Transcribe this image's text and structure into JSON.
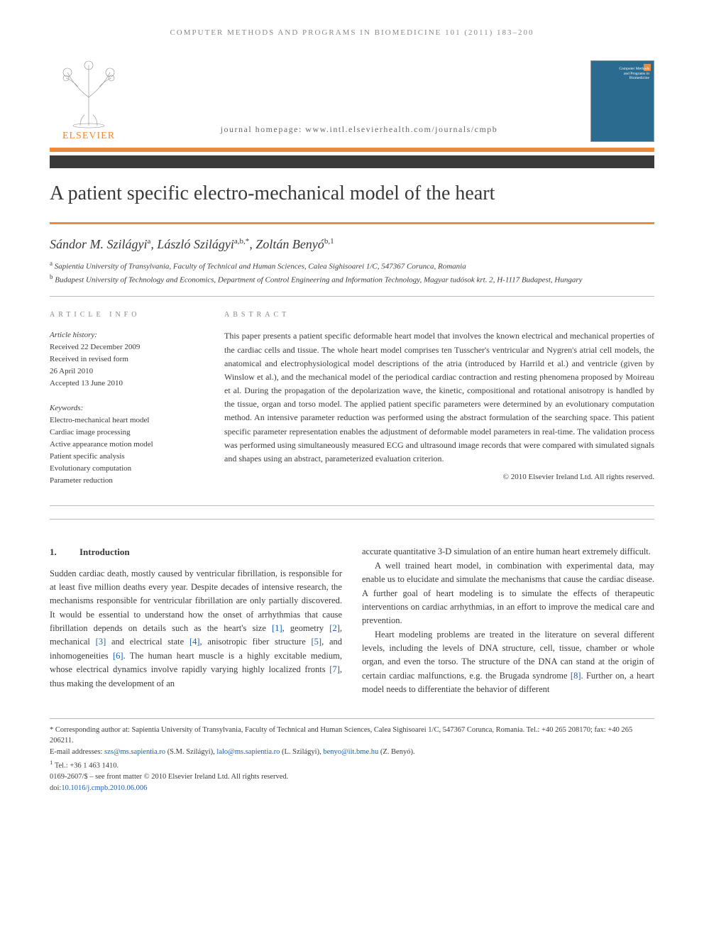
{
  "running_head": "COMPUTER METHODS AND PROGRAMS IN BIOMEDICINE 101 (2011) 183–200",
  "publisher": {
    "name": "ELSEVIER",
    "logo_color": "#ea8a3a"
  },
  "journal_homepage": "journal homepage: www.intl.elsevierhealth.com/journals/cmpb",
  "journal_cover": {
    "title": "Computer Methods and Programs in Biomedicine",
    "bg_color": "#2a6b8f"
  },
  "bars": {
    "orange": "#ea8a3a",
    "dark": "#3a3a3a"
  },
  "title": "A patient specific electro-mechanical model of the heart",
  "authors": [
    {
      "name": "Sándor M. Szilágyi",
      "affil": "a"
    },
    {
      "name": "László Szilágyi",
      "affil": "a,b,*"
    },
    {
      "name": "Zoltán Benyó",
      "affil": "b,1"
    }
  ],
  "affiliations": [
    {
      "sup": "a",
      "text": "Sapientia University of Transylvania, Faculty of Technical and Human Sciences, Calea Sighisoarei 1/C, 547367 Corunca, Romania"
    },
    {
      "sup": "b",
      "text": "Budapest University of Technology and Economics, Department of Control Engineering and Information Technology, Magyar tudósok krt. 2, H-1117 Budapest, Hungary"
    }
  ],
  "article_info": {
    "label": "ARTICLE INFO",
    "history_label": "Article history:",
    "received": "Received 22 December 2009",
    "revised_label": "Received in revised form",
    "revised_date": "26 April 2010",
    "accepted": "Accepted 13 June 2010",
    "keywords_label": "Keywords:",
    "keywords": [
      "Electro-mechanical heart model",
      "Cardiac image processing",
      "Active appearance motion model",
      "Patient specific analysis",
      "Evolutionary computation",
      "Parameter reduction"
    ]
  },
  "abstract": {
    "label": "ABSTRACT",
    "text": "This paper presents a patient specific deformable heart model that involves the known electrical and mechanical properties of the cardiac cells and tissue. The whole heart model comprises ten Tusscher's ventricular and Nygren's atrial cell models, the anatomical and electrophysiological model descriptions of the atria (introduced by Harrild et al.) and ventricle (given by Winslow et al.), and the mechanical model of the periodical cardiac contraction and resting phenomena proposed by Moireau et al. During the propagation of the depolarization wave, the kinetic, compositional and rotational anisotropy is handled by the tissue, organ and torso model. The applied patient specific parameters were determined by an evolutionary computation method. An intensive parameter reduction was performed using the abstract formulation of the searching space. This patient specific parameter representation enables the adjustment of deformable model parameters in real-time. The validation process was performed using simultaneously measured ECG and ultrasound image records that were compared with simulated signals and shapes using an abstract, parameterized evaluation criterion.",
    "copyright": "© 2010 Elsevier Ireland Ltd. All rights reserved."
  },
  "body": {
    "section_number": "1.",
    "section_title": "Introduction",
    "left_paragraphs": [
      "Sudden cardiac death, mostly caused by ventricular fibrillation, is responsible for at least five million deaths every year. Despite decades of intensive research, the mechanisms responsible for ventricular fibrillation are only partially discovered. It would be essential to understand how the onset of arrhythmias that cause fibrillation depends on details such as the heart's size [1], geometry [2], mechanical [3] and electrical state [4], anisotropic fiber structure [5], and inhomogeneities [6]. The human heart muscle is a highly excitable medium, whose electrical dynamics involve rapidly varying highly localized fronts [7], thus making the development of an"
    ],
    "right_paragraphs": [
      "accurate quantitative 3-D simulation of an entire human heart extremely difficult.",
      "A well trained heart model, in combination with experimental data, may enable us to elucidate and simulate the mechanisms that cause the cardiac disease. A further goal of heart modeling is to simulate the effects of therapeutic interventions on cardiac arrhythmias, in an effort to improve the medical care and prevention.",
      "Heart modeling problems are treated in the literature on several different levels, including the levels of DNA structure, cell, tissue, chamber or whole organ, and even the torso. The structure of the DNA can stand at the origin of certain cardiac malfunctions, e.g. the Brugada syndrome [8]. Further on, a heart model needs to differentiate the behavior of different"
    ],
    "ref_color": "#1a5fb4"
  },
  "footnotes": {
    "corresponding": "Corresponding author at: Sapientia University of Transylvania, Faculty of Technical and Human Sciences, Calea Sighisoarei 1/C, 547367 Corunca, Romania. Tel.: +40 265 208170; fax: +40 265 206211.",
    "emails_label": "E-mail addresses:",
    "emails": [
      {
        "addr": "szs@ms.sapientia.ro",
        "who": "(S.M. Szilágyi)"
      },
      {
        "addr": "lalo@ms.sapientia.ro",
        "who": "(L. Szilágyi)"
      },
      {
        "addr": "benyo@iit.bme.hu",
        "who": "(Z. Benyó)"
      }
    ],
    "tel_note": "Tel.: +36 1 463 1410.",
    "issn_line": "0169-2607/$ – see front matter © 2010 Elsevier Ireland Ltd. All rights reserved.",
    "doi_label": "doi:",
    "doi": "10.1016/j.cmpb.2010.06.006"
  }
}
